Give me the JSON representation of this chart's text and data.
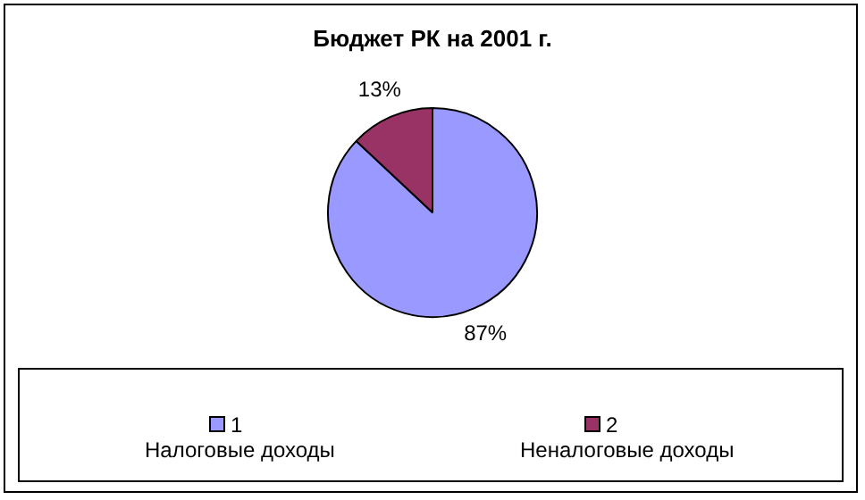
{
  "chart_data": {
    "type": "pie",
    "title": "Бюджет РК на 2001 г.",
    "categories": [
      "1",
      "2"
    ],
    "values": [
      87,
      13
    ],
    "colors": [
      "#9999ff",
      "#993366"
    ],
    "value_labels": [
      "87%",
      "13%"
    ],
    "annotations": [
      "Налоговые доходы",
      "Неналоговые доходы"
    ],
    "legend": "bottom"
  }
}
